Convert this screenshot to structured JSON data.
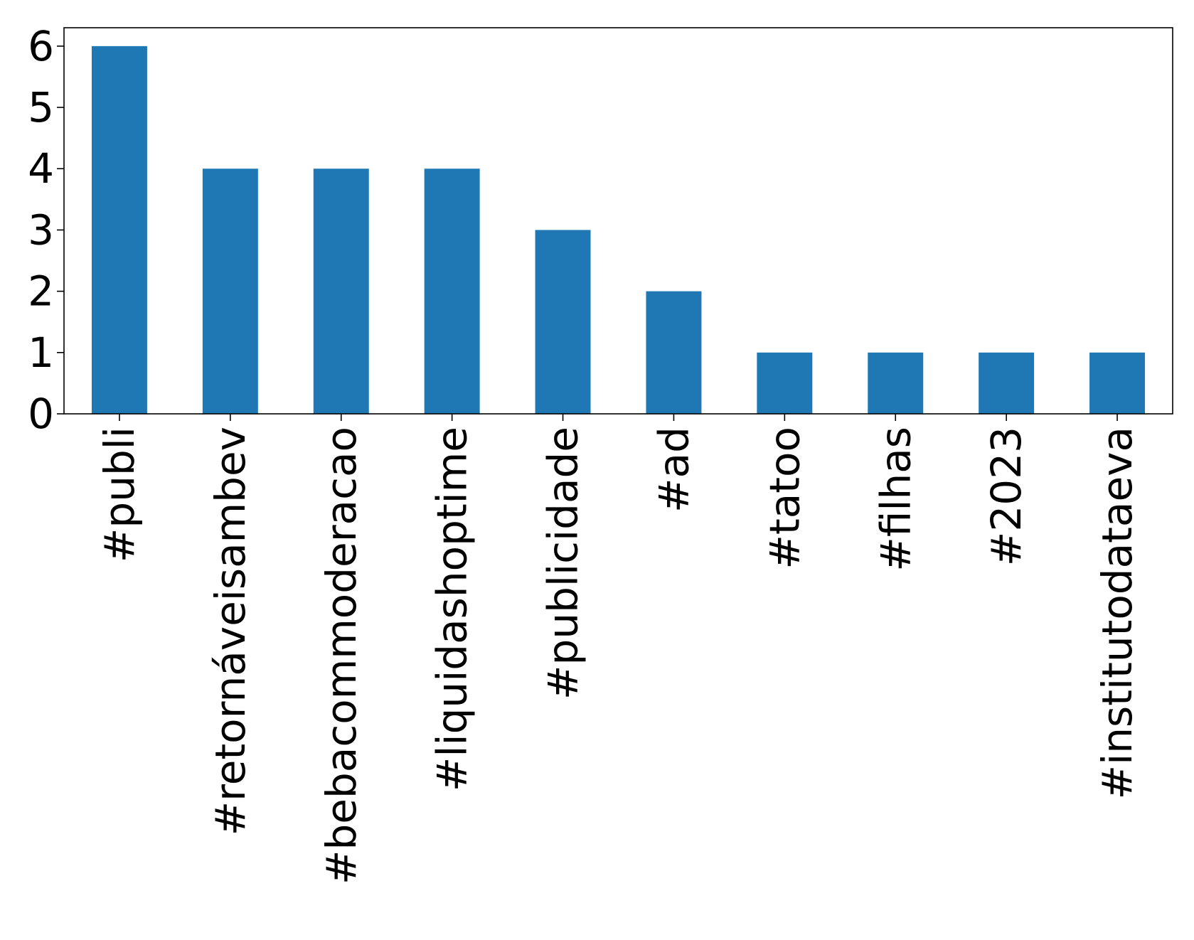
{
  "chart_data": {
    "type": "bar",
    "title": "",
    "xlabel": "",
    "ylabel": "",
    "categories": [
      "#publi",
      "#retornáveisambev",
      "#bebacommoderacao",
      "#liquidashoptime",
      "#publicidade",
      "#ad",
      "#tatoo",
      "#filhas",
      "#2023",
      "#institutodataeva"
    ],
    "values": [
      6,
      4,
      4,
      4,
      3,
      2,
      1,
      1,
      1,
      1
    ],
    "ylim": [
      0,
      6.3
    ],
    "yticks": [
      "0",
      "1",
      "2",
      "3",
      "4",
      "5",
      "6"
    ],
    "grid": false,
    "legend": "none",
    "bar_color": "#1f77b4"
  }
}
